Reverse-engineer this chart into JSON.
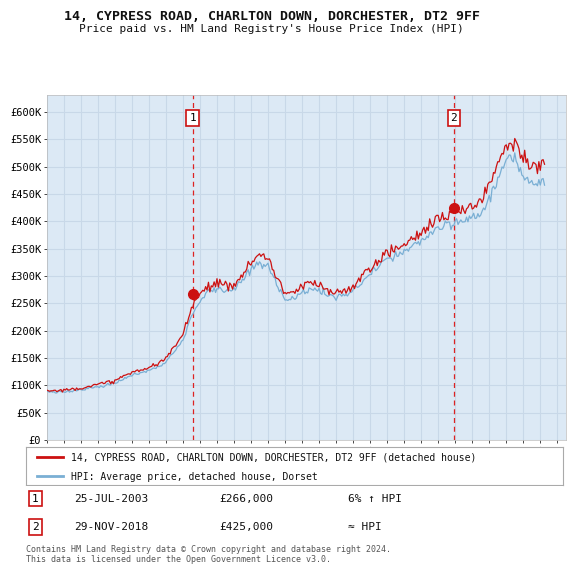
{
  "title1": "14, CYPRESS ROAD, CHARLTON DOWN, DORCHESTER, DT2 9FF",
  "title2": "Price paid vs. HM Land Registry's House Price Index (HPI)",
  "ylabel_ticks": [
    "£0",
    "£50K",
    "£100K",
    "£150K",
    "£200K",
    "£250K",
    "£300K",
    "£350K",
    "£400K",
    "£450K",
    "£500K",
    "£550K",
    "£600K"
  ],
  "ytick_values": [
    0,
    50000,
    100000,
    150000,
    200000,
    250000,
    300000,
    350000,
    400000,
    450000,
    500000,
    550000,
    600000
  ],
  "ylim": [
    0,
    630000
  ],
  "xlim_start": 1995.0,
  "xlim_end": 2025.5,
  "background_color": "#dce9f5",
  "plot_bg_color": "#dce9f5",
  "grid_color": "#c8d8e8",
  "legend_label_red": "14, CYPRESS ROAD, CHARLTON DOWN, DORCHESTER, DT2 9FF (detached house)",
  "legend_label_blue": "HPI: Average price, detached house, Dorset",
  "marker1_year": 2003.57,
  "marker1_value": 266000,
  "marker2_year": 2018.91,
  "marker2_value": 425000,
  "footer_text": "Contains HM Land Registry data © Crown copyright and database right 2024.\nThis data is licensed under the Open Government Licence v3.0.",
  "annotation1": [
    "1",
    "25-JUL-2003",
    "£266,000",
    "6% ↑ HPI"
  ],
  "annotation2": [
    "2",
    "29-NOV-2018",
    "£425,000",
    "≈ HPI"
  ]
}
